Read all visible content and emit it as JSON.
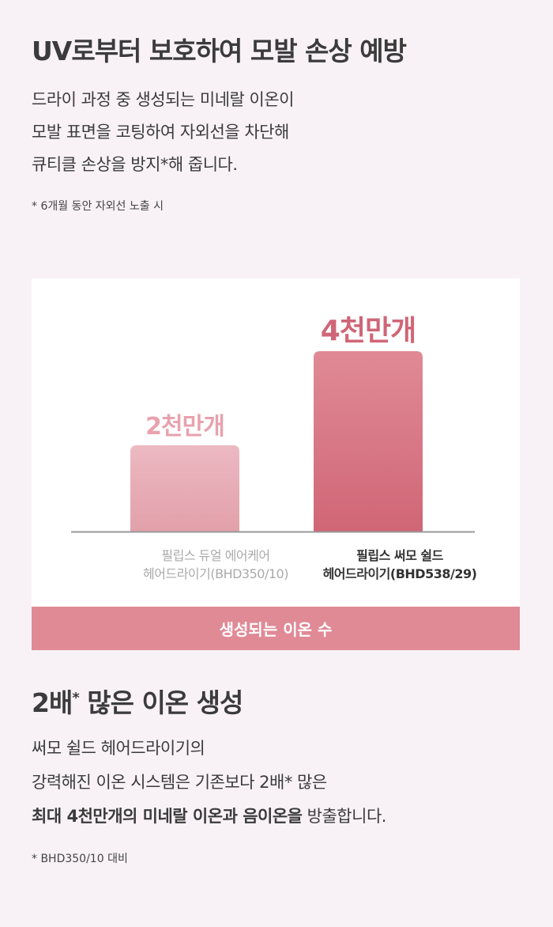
{
  "section1": {
    "title": "UV로부터 보호하여 모발 손상 예방",
    "lines": [
      "드라이 과정 중 생성되는 미네랄 이온이",
      "모발 표면을 코팅하여 자외선을 차단해",
      "큐티클 손상을 방지*해 줍니다."
    ],
    "note": "* 6개월 동안 자외선 노출 시"
  },
  "chart_data": {
    "type": "bar",
    "categories": [
      "필립스 듀얼 에어케어 헤어드라이기(BHD350/10)",
      "필립스 써모 쉴드 헤어드라이기(BHD538/29)"
    ],
    "category_lines": [
      [
        "필립스 듀얼 에어케어",
        "헤어드라이기(BHD350/10)"
      ],
      [
        "필립스 써모 쉴드",
        "헤어드라이기(BHD538/29)"
      ]
    ],
    "values": [
      20000000,
      40000000
    ],
    "data_labels": [
      "2천만개",
      "4천만개"
    ],
    "xlabel": "생성되는 이온 수",
    "colors": [
      "#e6aab3",
      "#d36b7b"
    ],
    "grid": false
  },
  "section2": {
    "title": "2배",
    "title_sup": "*",
    "title_rest": " 많은 이온 생성",
    "lines": [
      "써모 쉴드 헤어드라이기의",
      "강력해진 이온 시스템은 기존보다 2배* 많은"
    ],
    "line3_bold": "최대 4천만개의 미네랄 이온과 음이온을",
    "line3_rest": " 방출합니다.",
    "note": "* BHD350/10 대비"
  }
}
